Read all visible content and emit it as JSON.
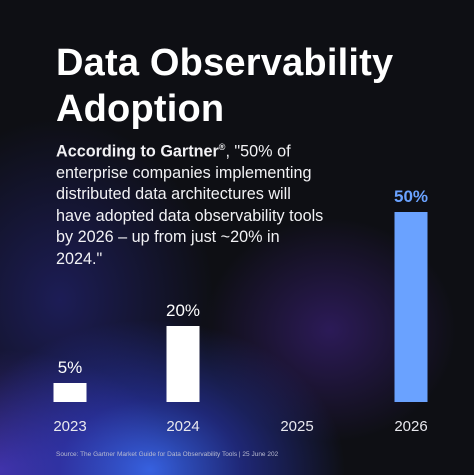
{
  "title": "Data Observability Adoption",
  "quote": {
    "lead": "According to Gartner",
    "registered": "®",
    "body": ", \"50% of enterprise companies implementing distributed data architectures will have adopted data observability tools by 2026 – up from just ~20% in 2024.\""
  },
  "source": "Source: The Gartner Market Guide for Data Observability Tools | 25 June 202",
  "colors": {
    "background": "#0e0f14",
    "bar_default": "#ffffff",
    "bar_highlight": "#6aa2ff",
    "highlight_label": "#6aa2ff",
    "tick_label": "#e8e8ee"
  },
  "chart_data": {
    "type": "bar",
    "categories": [
      "2023",
      "2024",
      "2025",
      "2026"
    ],
    "values": [
      5,
      20,
      null,
      50
    ],
    "data_labels": [
      "5%",
      "20%",
      "",
      "50%"
    ],
    "highlight_category": "2026",
    "ylim": [
      0,
      50
    ],
    "grid": false,
    "legend": "none",
    "title": "",
    "xlabel": "",
    "ylabel": ""
  }
}
